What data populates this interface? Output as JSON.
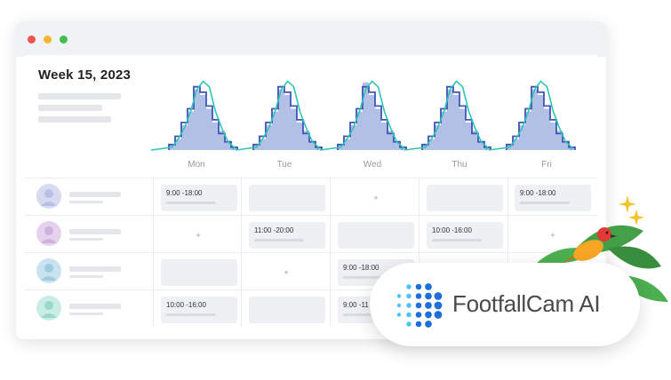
{
  "week_title": "Week 15, 2023",
  "days": [
    "Mon",
    "Tue",
    "Wed",
    "Thu",
    "Fri"
  ],
  "colors": {
    "bar_fill": "#b3c0e6",
    "step_line": "#3e56b5",
    "trend_line": "#2ec4b6",
    "window_bg": "#f1f2f4"
  },
  "shifts": [
    [
      "9:00 -18:00",
      "",
      "+",
      "",
      "9:00 -18:00"
    ],
    [
      "+",
      "11:00 -20:00",
      "",
      "10:00 -16:00",
      "+"
    ],
    [
      "",
      "+",
      "9:00 -18:00",
      "",
      ""
    ],
    [
      "10:00 -16:00",
      "",
      "9:00 -11",
      "",
      ""
    ]
  ],
  "brand": {
    "name": "FootfallCam AI",
    "icon": "dot-matrix-logo-icon"
  }
}
